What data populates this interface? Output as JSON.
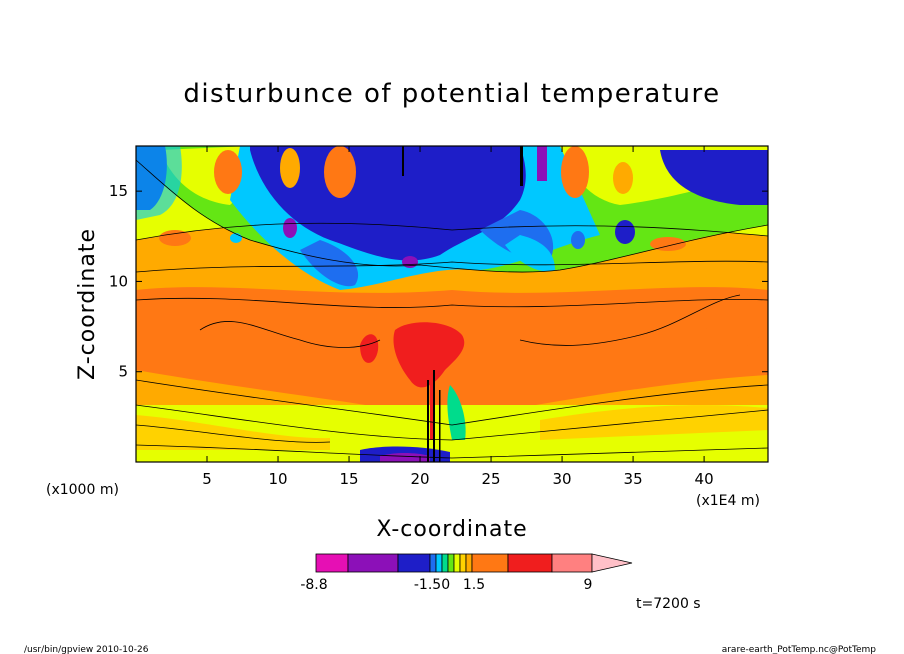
{
  "chart_data": {
    "type": "heatmap",
    "title": "disturbunce of potential temperature",
    "xlabel": "X-coordinate",
    "ylabel": "Z-coordinate",
    "x_unit_label": "(x1000 m)",
    "x_scale_label": "(x1E4 m)",
    "xlim": [
      0,
      44.5
    ],
    "ylim": [
      0,
      17.5
    ],
    "x_ticks": [
      5,
      10,
      15,
      20,
      25,
      30,
      35,
      40
    ],
    "y_ticks": [
      5,
      10,
      15
    ],
    "colorbar": {
      "colors": [
        "#e60fb4",
        "#8c10b8",
        "#1e1ec8",
        "#1e6ef0",
        "#00c8ff",
        "#00dc8c",
        "#64e614",
        "#e6ff00",
        "#ffd200",
        "#ffaa00",
        "#ff7814",
        "#f01e1e",
        "#ff8080",
        "#ffc0c8"
      ],
      "tick_labels": [
        "-8.8",
        "-1.50",
        "1.5",
        "9"
      ]
    },
    "annotation": "t=7200 s"
  },
  "footer": {
    "left": "/usr/bin/gpview   2010-10-26",
    "right": "arare-earth_PotTemp.nc@PotTemp"
  }
}
